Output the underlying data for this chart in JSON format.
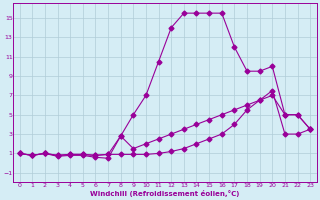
{
  "xlabel": "Windchill (Refroidissement éolien,°C)",
  "background_color": "#d5edf5",
  "grid_color": "#b0ccd8",
  "line_color": "#990099",
  "xlim": [
    -0.5,
    23.5
  ],
  "ylim": [
    -2.0,
    16.5
  ],
  "xticks": [
    0,
    1,
    2,
    3,
    4,
    5,
    6,
    7,
    8,
    9,
    10,
    11,
    12,
    13,
    14,
    15,
    16,
    17,
    18,
    19,
    20,
    21,
    22,
    23
  ],
  "yticks": [
    -1,
    1,
    3,
    5,
    7,
    9,
    11,
    13,
    15
  ],
  "line1_x": [
    0,
    1,
    2,
    3,
    4,
    5,
    6,
    7,
    8,
    9,
    10,
    11,
    12,
    13,
    14,
    15,
    16,
    17,
    18,
    19,
    20,
    21,
    22,
    23
  ],
  "line1_y": [
    1.0,
    0.8,
    1.0,
    0.7,
    0.8,
    0.8,
    0.6,
    0.5,
    2.8,
    1.5,
    2.0,
    2.5,
    3.0,
    3.5,
    4.0,
    4.5,
    5.0,
    5.5,
    6.0,
    6.5,
    7.0,
    5.0,
    5.0,
    3.5
  ],
  "line2_x": [
    0,
    1,
    2,
    3,
    4,
    5,
    6,
    7,
    8,
    9,
    10,
    11,
    12,
    13,
    14,
    15,
    16,
    17,
    18,
    19,
    20,
    21,
    22,
    23
  ],
  "line2_y": [
    1.0,
    0.8,
    1.0,
    0.8,
    0.9,
    0.9,
    0.8,
    0.9,
    0.9,
    0.9,
    0.9,
    1.0,
    1.2,
    1.5,
    2.0,
    2.5,
    3.0,
    4.0,
    5.5,
    6.5,
    7.5,
    3.0,
    3.0,
    3.5
  ],
  "line3_x": [
    0,
    1,
    2,
    3,
    4,
    5,
    6,
    7,
    8,
    9,
    10,
    11,
    12,
    13,
    14,
    15,
    16,
    17,
    18,
    19,
    20,
    21,
    22,
    23
  ],
  "line3_y": [
    1.0,
    0.8,
    1.0,
    0.8,
    0.9,
    0.9,
    0.8,
    0.9,
    2.8,
    5.0,
    7.0,
    10.5,
    14.0,
    15.5,
    15.5,
    15.5,
    15.5,
    12.0,
    9.5,
    9.5,
    10.0,
    5.0,
    5.0,
    3.5
  ],
  "markersize": 2.5,
  "linewidth": 0.8,
  "tick_fontsize": 4.5,
  "xlabel_fontsize": 5.0
}
